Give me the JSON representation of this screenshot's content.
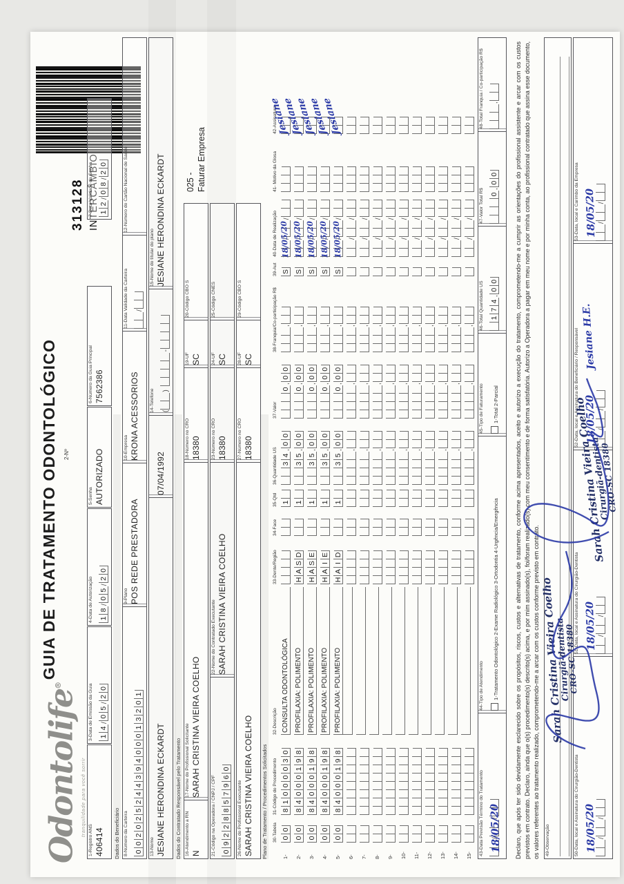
{
  "colors": {
    "handwriting_ink": "#2b3aa6",
    "stamp_ink": "#232f66",
    "paper": "#fcfcf9"
  },
  "header": {
    "logo": "Odontolife",
    "logo_reg": "®",
    "tagline": "tranquilidade para você sorrir",
    "title": "GUIA DE TRATAMENTO ODONTOLÓGICO",
    "n_label": "2-Nº",
    "guide_number": "313128",
    "guide_type": "INTERCÂMBIO"
  },
  "sections": {
    "s1": "Dados do Beneficiário",
    "s2": "Dados do Contratado Responsável pelo Tratamento",
    "s3": "Plano de Tratamento / Procedimentos Solicitados"
  },
  "fields": {
    "f1": {
      "label": "1-Registro ANS",
      "value": "406414"
    },
    "f3": {
      "label": "3-Data de Emissão da Guia",
      "value": "14/05/20"
    },
    "f4": {
      "label": "4-Data de Autorização",
      "value": "18/05/20"
    },
    "f5": {
      "label": "5-Senha",
      "value": "AUTORIZADO"
    },
    "f6": {
      "label": "6-Número da Guia Principal",
      "value": "7562386"
    },
    "f7": {
      "label": "7-Data Validade da Senha",
      "value": "12/08/20"
    },
    "f8": {
      "label": "8-Número da Carteira",
      "value": "00202524439400013201"
    },
    "f9": {
      "label": "9-Plano",
      "value": "POS REDE PRESTADORA"
    },
    "f10": {
      "label": "10-Empresa",
      "value": "KRONA ACESSORIOS"
    },
    "f11": {
      "label": "11-Data Validade da Carteira",
      "value": ""
    },
    "f12": {
      "label": "12-Número do Cartão Nacional de Saúde",
      "value": ""
    },
    "f13": {
      "label": "13-Nome",
      "value": "JESIANE HERONDINA ECKARDT"
    },
    "birth": {
      "label": "",
      "value": "07/04/1992"
    },
    "f14": {
      "label": "14-Telefone",
      "value": ""
    },
    "f15": {
      "label": "15-Nome do titular do plano",
      "value": "JESIANE HERONDINA ECKARDT"
    },
    "f16": {
      "label": "16-Atendimento a RN",
      "value": "N"
    },
    "f17": {
      "label": "17-Nome do Profissional Solicitante",
      "value": "SARAH CRISTINA VIEIRA COELHO"
    },
    "f18": {
      "label": "18-Número no CRO",
      "value": "18380"
    },
    "f19": {
      "label": "19-UF",
      "value": "SC"
    },
    "f20": {
      "label": "20-Código CBO S",
      "value": ""
    },
    "note025_line1": "025 -",
    "note025_line2": "Faturar Empresa",
    "f21": {
      "label": "21-Código na Operadora / CNPJ / CPF",
      "value": "09228857960"
    },
    "f22": {
      "label": "22-Nome do Contratado Executante",
      "value": "SARAH CRISTINA VIEIRA COELHO"
    },
    "f23": {
      "label": "23-Número no CRO",
      "value": "18380"
    },
    "f24": {
      "label": "24-UF",
      "value": "SC"
    },
    "f25": {
      "label": "25-Código CNES",
      "value": ""
    },
    "f26": {
      "label": "26-Nome do Profissional Executante",
      "value": "SARAH CRISTINA VIEIRA COELHO"
    },
    "f27": {
      "label": "27-Número no CRO",
      "value": "18380"
    },
    "f28": {
      "label": "28-UF",
      "value": "SC"
    },
    "f29": {
      "label": "29-Código CBO S",
      "value": ""
    }
  },
  "table": {
    "headers": [
      "30-Tabela",
      "31-Código do Procedimento",
      "32-Descrição",
      "33-Dente/Região",
      "34-Face",
      "35-Qtd",
      "36-Quantidade US",
      "37-Valor",
      "38-Franquia/Co-participação R$",
      "39-Aut",
      "40-Data de Realização",
      "41- Motivo da Glosa",
      "42-Assinatura"
    ],
    "rows": [
      {
        "n": "1-",
        "tabela": "00",
        "codigo": "81000030",
        "descricao": "CONSULTA ODONTOLÓGICA",
        "dente": "",
        "face": "",
        "qtd": "1",
        "us": "34,00",
        "valor": "0,00",
        "franquia": "",
        "aut": "S",
        "data": "18/05/20",
        "glosa": "",
        "assinatura": "Jesiane"
      },
      {
        "n": "2-",
        "tabela": "00",
        "codigo": "84000198",
        "descricao": "PROFILAXIA: POLIMENTO",
        "dente": "HASD",
        "face": "",
        "qtd": "1",
        "us": "35,00",
        "valor": "0,00",
        "franquia": "",
        "aut": "S",
        "data": "18/05/20",
        "glosa": "",
        "assinatura": "Jesiane"
      },
      {
        "n": "3-",
        "tabela": "00",
        "codigo": "84000198",
        "descricao": "PROFILAXIA: POLIMENTO",
        "dente": "HASE",
        "face": "",
        "qtd": "1",
        "us": "35,00",
        "valor": "0,00",
        "franquia": "",
        "aut": "S",
        "data": "18/05/20",
        "glosa": "",
        "assinatura": "Jesiane"
      },
      {
        "n": "4-",
        "tabela": "00",
        "codigo": "84000198",
        "descricao": "PROFILAXIA: POLIMENTO",
        "dente": "HAIE",
        "face": "",
        "qtd": "1",
        "us": "35,00",
        "valor": "0,00",
        "franquia": "",
        "aut": "S",
        "data": "18/05/20",
        "glosa": "",
        "assinatura": "Jesiane"
      },
      {
        "n": "5-",
        "tabela": "00",
        "codigo": "84000198",
        "descricao": "PROFILAXIA: POLIMENTO",
        "dente": "HAID",
        "face": "",
        "qtd": "1",
        "us": "35,00",
        "valor": "0,00",
        "franquia": "",
        "aut": "S",
        "data": "18/05/20",
        "glosa": "",
        "assinatura": "Jesiane"
      },
      {
        "n": "6-"
      },
      {
        "n": "7-"
      },
      {
        "n": "8-"
      },
      {
        "n": "9-"
      },
      {
        "n": "10-"
      },
      {
        "n": "11-"
      },
      {
        "n": "12-"
      },
      {
        "n": "13-"
      },
      {
        "n": "14-"
      },
      {
        "n": "15-"
      }
    ]
  },
  "totals": {
    "f43": {
      "label": "43-Data Previsão Término do Tratamento",
      "value": "18/05/20"
    },
    "f44": {
      "label": "44-Tipo de Atendimento",
      "options": "1-Tratamento Odontológico  2-Exame Radiológico  3-Ortodontia  4-Urgência/Emergência"
    },
    "f45": {
      "label": "45-Tipo de Faturamento",
      "options": "1-Total  2-Parcial"
    },
    "f46": {
      "label": "46-Total Quantidade US",
      "value": "174,00"
    },
    "f47": {
      "label": "47-Valor Total R$",
      "value": "0,00"
    },
    "f48": {
      "label": "48-Total Franquia / Co-participação R$",
      "value": ""
    }
  },
  "declaration": "Declaro, que após ter sido devidamente esclarecido sobre os propósitos, riscos, custos e alternativas de tratamento, conforme acima apresentados, aceito e autorizo a execução do tratamento, comprometendo-me a cumprir as orientações do profissional assistente e arcar com os custos previstos em contrato. Declaro, ainda que o(s) procedimento(s) descrito(s) acima, e por mim assinado(s), foi/foram realizado(s) com meu consentimento e de forma satisfatória. Autorizo a Operadora a pagar em meu nome e por minha conta, ao profissional contratado que assina esse documento, os valores referentes ao tratamento realizado, comprometendo-me a arcar com os custos conforme previsto em contrato.",
  "observation": {
    "label": "49-Observação"
  },
  "footer": {
    "f50": {
      "label": "50-Data, local e Assinatura do Cirurgião-Dentista",
      "value": "18/05/20"
    },
    "f51": {
      "label": "51-Data, local e Assinatura do Cirurgião-Dentista",
      "value": "18/05/20"
    },
    "f52": {
      "label": "52-Data, local e Assinatura do Beneficiário / Responsável",
      "value": "18/05/20",
      "signature": "Jesiane H.E."
    },
    "f53": {
      "label": "53-Data, local e Carimbo da Empresa",
      "value": "18/05/20"
    },
    "stamp": {
      "line1": "Sarah Cristina Vieira Coelho",
      "line2": "Cirurgiã-dentista",
      "line3": "CRO-SC 18380"
    }
  }
}
